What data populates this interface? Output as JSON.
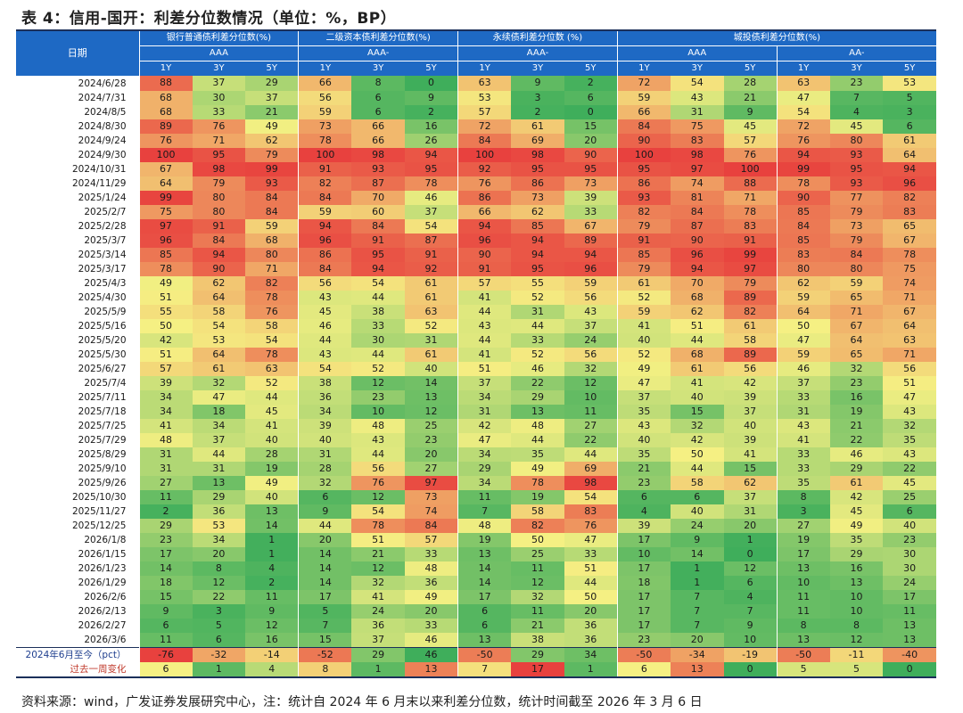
{
  "title": "表 4：信用-国开：利差分位数情况（单位：%，BP）",
  "header": {
    "date_label": "日期",
    "groups": [
      {
        "label": "银行普通债利差分位数(%)",
        "span": 3
      },
      {
        "label": "二级资本债利差分位数(%)",
        "span": 3
      },
      {
        "label": "永续债利差分位数 (%)",
        "span": 3
      },
      {
        "label": "城投债利差分位数(%)",
        "span": 6
      }
    ],
    "ratings": [
      {
        "label": "AAA",
        "span": 3
      },
      {
        "label": "AAA-",
        "span": 3
      },
      {
        "label": "AAA-",
        "span": 3
      },
      {
        "label": "AAA",
        "span": 3
      },
      {
        "label": "AA-",
        "span": 3
      }
    ],
    "tenors": [
      "1Y",
      "3Y",
      "5Y",
      "1Y",
      "3Y",
      "5Y",
      "1Y",
      "3Y",
      "5Y",
      "1Y",
      "3Y",
      "5Y",
      "1Y",
      "3Y",
      "5Y"
    ]
  },
  "rows": [
    {
      "date": "2024/6/28",
      "values": [
        88,
        37,
        29,
        66,
        8,
        0,
        63,
        9,
        2,
        72,
        54,
        28,
        63,
        23,
        53
      ]
    },
    {
      "date": "2024/7/31",
      "values": [
        68,
        30,
        37,
        56,
        6,
        9,
        53,
        3,
        6,
        59,
        43,
        21,
        47,
        7,
        5
      ]
    },
    {
      "date": "2024/8/5",
      "values": [
        68,
        33,
        21,
        59,
        6,
        2,
        57,
        2,
        0,
        66,
        31,
        9,
        54,
        4,
        3
      ]
    },
    {
      "date": "2024/8/30",
      "values": [
        89,
        76,
        49,
        73,
        66,
        16,
        72,
        61,
        15,
        84,
        75,
        45,
        72,
        45,
        6
      ]
    },
    {
      "date": "2024/9/24",
      "values": [
        76,
        71,
        62,
        78,
        66,
        26,
        84,
        69,
        20,
        90,
        83,
        57,
        76,
        80,
        61
      ]
    },
    {
      "date": "2024/9/30",
      "values": [
        100,
        95,
        79,
        100,
        98,
        94,
        100,
        98,
        90,
        100,
        98,
        76,
        94,
        93,
        64
      ]
    },
    {
      "date": "2024/10/31",
      "values": [
        67,
        98,
        99,
        91,
        93,
        95,
        92,
        95,
        95,
        95,
        97,
        100,
        99,
        95,
        94
      ]
    },
    {
      "date": "2024/11/29",
      "values": [
        64,
        79,
        93,
        82,
        87,
        78,
        76,
        86,
        73,
        86,
        74,
        88,
        78,
        93,
        96
      ]
    },
    {
      "date": "2025/1/24",
      "values": [
        99,
        80,
        84,
        84,
        70,
        46,
        86,
        73,
        39,
        93,
        81,
        71,
        90,
        77,
        82
      ]
    },
    {
      "date": "2025/2/7",
      "values": [
        75,
        80,
        84,
        59,
        60,
        37,
        66,
        62,
        33,
        82,
        84,
        78,
        85,
        79,
        83
      ]
    },
    {
      "date": "2025/2/28",
      "values": [
        97,
        91,
        59,
        94,
        84,
        54,
        94,
        85,
        67,
        79,
        87,
        83,
        84,
        73,
        65
      ]
    },
    {
      "date": "2025/3/7",
      "values": [
        96,
        84,
        68,
        96,
        91,
        87,
        96,
        94,
        89,
        91,
        90,
        91,
        85,
        79,
        67
      ]
    },
    {
      "date": "2025/3/14",
      "values": [
        85,
        94,
        80,
        86,
        95,
        91,
        90,
        94,
        94,
        85,
        96,
        99,
        83,
        84,
        78
      ]
    },
    {
      "date": "2025/3/17",
      "values": [
        78,
        90,
        71,
        84,
        94,
        92,
        91,
        95,
        96,
        79,
        94,
        97,
        80,
        80,
        75
      ]
    },
    {
      "date": "2025/4/3",
      "values": [
        49,
        62,
        82,
        56,
        54,
        61,
        57,
        55,
        59,
        61,
        70,
        79,
        62,
        59,
        74
      ]
    },
    {
      "date": "2025/4/30",
      "values": [
        51,
        64,
        78,
        43,
        44,
        61,
        41,
        52,
        56,
        52,
        68,
        89,
        59,
        65,
        71
      ]
    },
    {
      "date": "2025/5/9",
      "values": [
        55,
        58,
        76,
        45,
        38,
        63,
        44,
        31,
        43,
        59,
        62,
        82,
        64,
        71,
        67
      ]
    },
    {
      "date": "2025/5/16",
      "values": [
        50,
        54,
        58,
        46,
        33,
        52,
        43,
        44,
        37,
        41,
        51,
        61,
        50,
        67,
        64
      ]
    },
    {
      "date": "2025/5/20",
      "values": [
        42,
        53,
        54,
        44,
        30,
        31,
        44,
        33,
        24,
        40,
        44,
        58,
        47,
        64,
        63
      ]
    },
    {
      "date": "2025/5/30",
      "values": [
        51,
        64,
        78,
        43,
        44,
        61,
        41,
        52,
        56,
        52,
        68,
        89,
        59,
        65,
        71
      ]
    },
    {
      "date": "2025/6/27",
      "values": [
        57,
        61,
        63,
        54,
        52,
        40,
        51,
        46,
        32,
        49,
        61,
        56,
        46,
        32,
        56
      ]
    },
    {
      "date": "2025/7/4",
      "values": [
        39,
        32,
        52,
        38,
        12,
        14,
        37,
        22,
        12,
        47,
        41,
        42,
        37,
        23,
        51
      ]
    },
    {
      "date": "2025/7/11",
      "values": [
        34,
        47,
        44,
        36,
        23,
        13,
        34,
        29,
        10,
        37,
        40,
        39,
        33,
        16,
        47
      ]
    },
    {
      "date": "2025/7/18",
      "values": [
        34,
        18,
        45,
        34,
        10,
        12,
        31,
        13,
        11,
        35,
        15,
        37,
        31,
        19,
        43
      ]
    },
    {
      "date": "2025/7/25",
      "values": [
        41,
        34,
        41,
        39,
        48,
        25,
        42,
        48,
        27,
        43,
        32,
        40,
        43,
        21,
        32
      ]
    },
    {
      "date": "2025/7/29",
      "values": [
        48,
        37,
        40,
        40,
        43,
        23,
        47,
        44,
        22,
        40,
        42,
        39,
        41,
        22,
        35
      ]
    },
    {
      "date": "2025/8/29",
      "values": [
        31,
        44,
        28,
        31,
        44,
        20,
        34,
        35,
        44,
        35,
        50,
        41,
        33,
        46,
        43
      ]
    },
    {
      "date": "2025/9/10",
      "values": [
        31,
        31,
        19,
        28,
        56,
        27,
        29,
        49,
        69,
        21,
        44,
        15,
        33,
        29,
        22
      ]
    },
    {
      "date": "2025/9/26",
      "values": [
        27,
        13,
        49,
        32,
        76,
        97,
        34,
        78,
        98,
        23,
        58,
        62,
        35,
        61,
        45
      ]
    },
    {
      "date": "2025/10/30",
      "values": [
        11,
        29,
        40,
        6,
        12,
        73,
        11,
        19,
        54,
        6,
        6,
        37,
        8,
        42,
        25
      ]
    },
    {
      "date": "2025/11/27",
      "values": [
        2,
        36,
        13,
        9,
        54,
        74,
        7,
        58,
        83,
        4,
        40,
        31,
        3,
        45,
        6
      ]
    },
    {
      "date": "2025/12/25",
      "values": [
        29,
        53,
        14,
        44,
        78,
        84,
        48,
        82,
        76,
        39,
        24,
        20,
        27,
        49,
        40
      ]
    },
    {
      "date": "2026/1/8",
      "values": [
        23,
        34,
        1,
        20,
        51,
        57,
        19,
        50,
        47,
        17,
        9,
        1,
        19,
        35,
        23
      ]
    },
    {
      "date": "2026/1/15",
      "values": [
        17,
        20,
        1,
        14,
        21,
        33,
        13,
        25,
        33,
        10,
        14,
        0,
        17,
        29,
        30
      ]
    },
    {
      "date": "2026/1/23",
      "values": [
        14,
        8,
        4,
        14,
        12,
        48,
        14,
        11,
        51,
        17,
        1,
        12,
        13,
        16,
        30
      ]
    },
    {
      "date": "2026/1/29",
      "values": [
        18,
        12,
        2,
        14,
        32,
        36,
        14,
        12,
        44,
        18,
        1,
        6,
        10,
        13,
        24
      ]
    },
    {
      "date": "2026/2/6",
      "values": [
        15,
        22,
        11,
        17,
        41,
        49,
        17,
        32,
        50,
        17,
        7,
        4,
        11,
        10,
        17
      ]
    },
    {
      "date": "2026/2/13",
      "values": [
        9,
        3,
        9,
        5,
        24,
        20,
        6,
        11,
        20,
        17,
        7,
        7,
        11,
        10,
        11
      ]
    },
    {
      "date": "2026/2/27",
      "values": [
        6,
        5,
        12,
        7,
        36,
        33,
        6,
        21,
        36,
        17,
        7,
        9,
        8,
        8,
        13
      ]
    },
    {
      "date": "2026/3/6",
      "values": [
        11,
        6,
        16,
        15,
        37,
        46,
        13,
        38,
        36,
        23,
        20,
        10,
        13,
        12,
        13
      ]
    }
  ],
  "summary_rows": [
    {
      "label": "2024年6月至今（pct）",
      "values": [
        -76,
        -32,
        -14,
        -52,
        29,
        46,
        -50,
        29,
        34,
        -50,
        -34,
        -19,
        -50,
        -11,
        -40
      ]
    },
    {
      "label": "过去一周变化",
      "values": [
        6,
        1,
        4,
        8,
        1,
        13,
        7,
        17,
        1,
        6,
        13,
        0,
        5,
        5,
        0
      ]
    }
  ],
  "footer": "资料来源：wind，广发证券发展研究中心，注：统计自 2024 年 6 月末以来利差分位数，统计时间截至 2026 年 3 月 6 日",
  "colors": {
    "header_bg": "#1e69c4",
    "low": "#3fae5b",
    "mid": "#f5f083",
    "high": "#e8413e",
    "summary_neg": "#e8413e",
    "summary_mid": "#f5f083",
    "summary_pos": "#3fae5b"
  }
}
